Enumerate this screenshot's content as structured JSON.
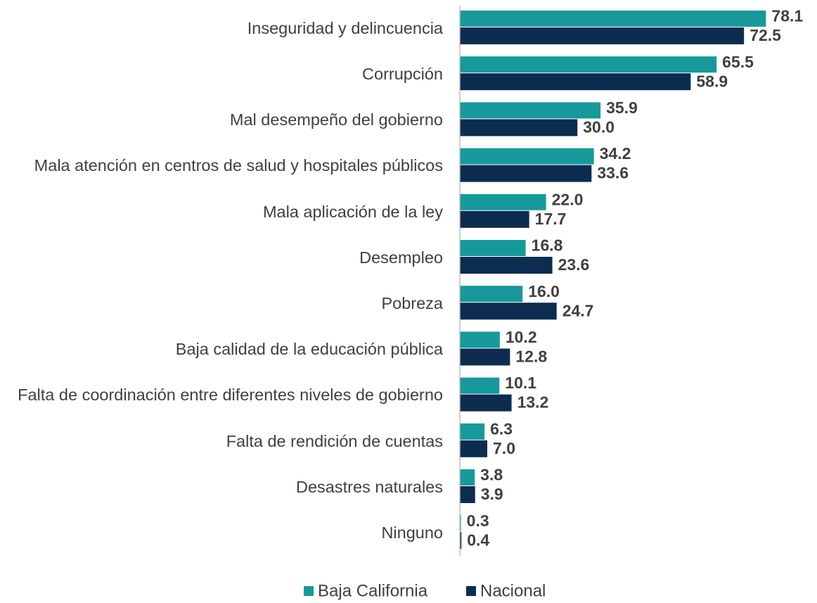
{
  "chart_data": {
    "type": "bar",
    "orientation": "horizontal",
    "categories": [
      "Inseguridad y delincuencia",
      "Corrupción",
      "Mal desempeño del gobierno",
      "Mala atención en centros de salud y hospitales públicos",
      "Mala aplicación de la ley",
      "Desempleo",
      "Pobreza",
      "Baja calidad de la educación pública",
      "Falta de coordinación entre diferentes niveles de gobierno",
      "Falta de rendición de cuentas",
      "Desastres naturales",
      "Ninguno"
    ],
    "series": [
      {
        "name": "Baja California",
        "color": "#17999b",
        "values": [
          78.1,
          65.5,
          35.9,
          34.2,
          22.0,
          16.8,
          16.0,
          10.2,
          10.1,
          6.3,
          3.8,
          0.3
        ],
        "value_labels": [
          "78.1",
          "65.5",
          "35.9",
          "34.2",
          "22.0",
          "16.8",
          "16.0",
          "10.2",
          "10.1",
          "6.3",
          "3.8",
          "0.3"
        ]
      },
      {
        "name": "Nacional",
        "color": "#0c2d50",
        "values": [
          72.5,
          58.9,
          30.0,
          33.6,
          17.7,
          23.6,
          24.7,
          12.8,
          13.2,
          7.0,
          3.9,
          0.4
        ],
        "value_labels": [
          "72.5",
          "58.9",
          "30.0",
          "33.6",
          "17.7",
          "23.6",
          "24.7",
          "12.8",
          "13.2",
          "7.0",
          "3.9",
          "0.4"
        ]
      }
    ],
    "xlim": [
      0,
      80
    ],
    "legend": "bottom"
  }
}
